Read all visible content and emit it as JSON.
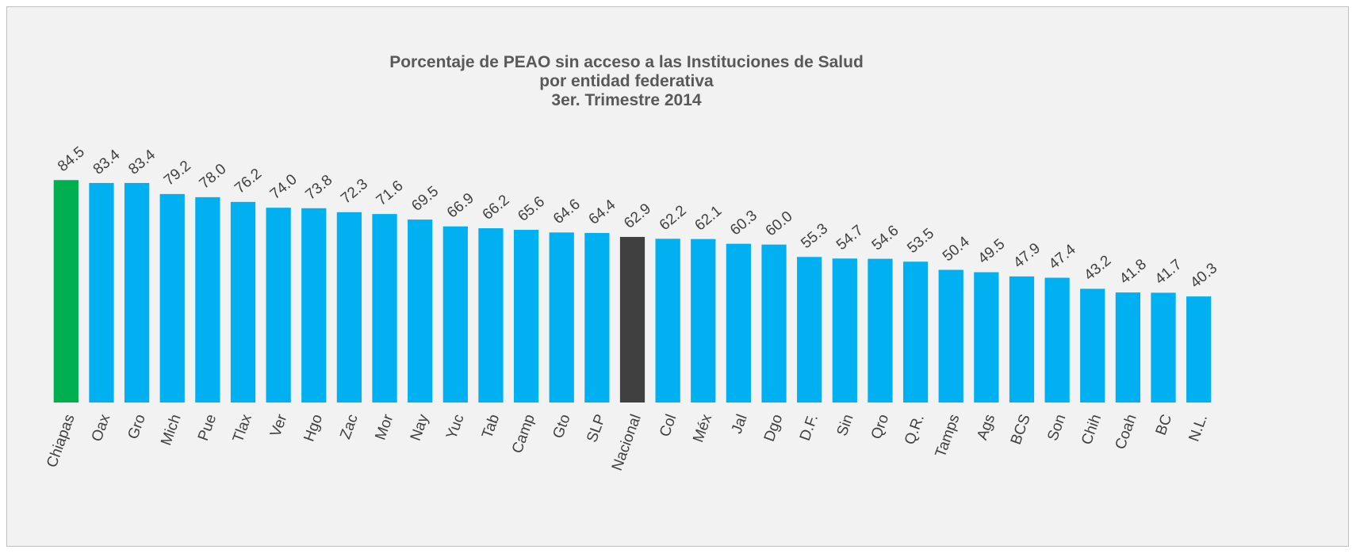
{
  "chart_data": {
    "type": "bar",
    "title": [
      "Porcentaje de PEAO sin acceso a las Instituciones de Salud",
      "por entidad federativa",
      "3er. Trimestre 2014"
    ],
    "categories": [
      "Chiapas",
      "Oax",
      "Gro",
      "Mich",
      "Pue",
      "Tlax",
      "Ver",
      "Hgo",
      "Zac",
      "Mor",
      "Nay",
      "Yuc",
      "Tab",
      "Camp",
      "Gto",
      "SLP",
      "Nacional",
      "Col",
      "Méx",
      "Jal",
      "Dgo",
      "D.F.",
      "Sin",
      "Qro",
      "Q.R.",
      "Tamps",
      "Ags",
      "BCS",
      "Son",
      "Chih",
      "Coah",
      "BC",
      "N.L."
    ],
    "values": [
      84.5,
      83.4,
      83.4,
      79.2,
      78.0,
      76.2,
      74.0,
      73.8,
      72.3,
      71.6,
      69.5,
      66.9,
      66.2,
      65.6,
      64.6,
      64.4,
      62.9,
      62.2,
      62.1,
      60.3,
      60.0,
      55.3,
      54.7,
      54.6,
      53.5,
      50.4,
      49.5,
      47.9,
      47.4,
      43.2,
      41.8,
      41.7,
      40.3
    ],
    "value_labels": [
      "84.5",
      "83.4",
      "83.4",
      "79.2",
      "78.0",
      "76.2",
      "74.0",
      "73.8",
      "72.3",
      "71.6",
      "69.5",
      "66.9",
      "66.2",
      "65.6",
      "64.6",
      "64.4",
      "62.9",
      "62.2",
      "62.1",
      "60.3",
      "60.0",
      "55.3",
      "54.7",
      "54.6",
      "53.5",
      "50.4",
      "49.5",
      "47.9",
      "47.4",
      "43.2",
      "41.8",
      "41.7",
      "40.3"
    ],
    "colors": [
      "#00b050",
      "#00b0f0",
      "#00b0f0",
      "#00b0f0",
      "#00b0f0",
      "#00b0f0",
      "#00b0f0",
      "#00b0f0",
      "#00b0f0",
      "#00b0f0",
      "#00b0f0",
      "#00b0f0",
      "#00b0f0",
      "#00b0f0",
      "#00b0f0",
      "#00b0f0",
      "#404040",
      "#00b0f0",
      "#00b0f0",
      "#00b0f0",
      "#00b0f0",
      "#00b0f0",
      "#00b0f0",
      "#00b0f0",
      "#00b0f0",
      "#00b0f0",
      "#00b0f0",
      "#00b0f0",
      "#00b0f0",
      "#00b0f0",
      "#00b0f0",
      "#00b0f0",
      "#00b0f0"
    ],
    "ylim": [
      0,
      90
    ]
  }
}
